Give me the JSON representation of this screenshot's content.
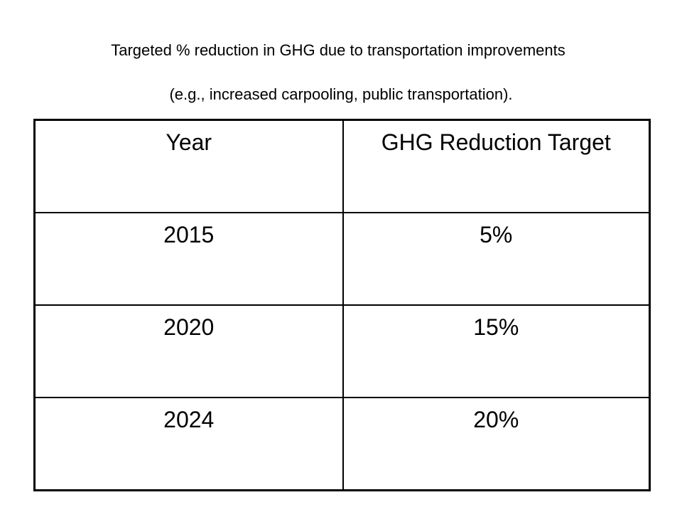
{
  "title": {
    "line1": "Targeted % reduction in GHG due to transportation improvements",
    "line2": "(e.g., increased carpooling, public transportation)."
  },
  "table": {
    "headers": [
      "Year",
      "GHG Reduction Target"
    ],
    "rows": [
      [
        "2015",
        "5%"
      ],
      [
        "2020",
        "15%"
      ],
      [
        "2024",
        "20%"
      ]
    ]
  }
}
